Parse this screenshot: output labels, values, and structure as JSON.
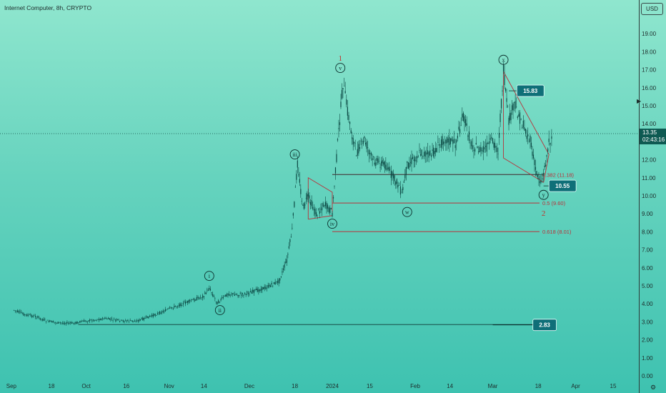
{
  "header": {
    "title": "Internet Computer, 8h, CRYPTO",
    "unit_button": "USD"
  },
  "price_tag": {
    "price": "13.35",
    "countdown": "02:43:16"
  },
  "colors": {
    "candles": "#0d4a45",
    "fib_line": "#b8323a",
    "marker_box": "#0f6f78",
    "wave_primary": "#c0312b",
    "text_dark": "#1d2b2a"
  },
  "icons": {
    "settings": "gear-icon"
  },
  "chart_data": {
    "type": "line",
    "y_axis_ticks": [
      "0.00",
      "1.00",
      "2.00",
      "3.00",
      "4.00",
      "5.00",
      "6.00",
      "7.00",
      "8.00",
      "9.00",
      "10.00",
      "11.00",
      "12.00",
      "13.00",
      "14.00",
      "15.00",
      "16.00",
      "17.00",
      "18.00",
      "19.00"
    ],
    "x_axis_ticks": [
      "Sep",
      "18",
      "Oct",
      "16",
      "Nov",
      "14",
      "Dec",
      "18",
      "2024",
      "15",
      "Feb",
      "14",
      "Mar",
      "18",
      "Apr",
      "15"
    ],
    "ylim": [
      0,
      20
    ],
    "grid": false,
    "current_price": 13.35,
    "price_path": [
      [
        "Sep 4",
        3.65
      ],
      [
        "Sep 8",
        3.4
      ],
      [
        "Sep 12",
        3.3
      ],
      [
        "Sep 16",
        3.05
      ],
      [
        "Sep 20",
        2.95
      ],
      [
        "Sep 26",
        2.92
      ],
      [
        "Oct 1",
        3.05
      ],
      [
        "Oct 8",
        3.18
      ],
      [
        "Oct 14",
        3.05
      ],
      [
        "Oct 20",
        3.05
      ],
      [
        "Oct 26",
        3.35
      ],
      [
        "Oct 31",
        3.65
      ],
      [
        "Nov 5",
        3.95
      ],
      [
        "Nov 10",
        4.2
      ],
      [
        "Nov 14",
        4.45
      ],
      [
        "Nov 16",
        4.88
      ],
      [
        "Nov 19",
        4.05
      ],
      [
        "Nov 23",
        4.55
      ],
      [
        "Nov 28",
        4.5
      ],
      [
        "Dec 4",
        4.75
      ],
      [
        "Dec 8",
        4.95
      ],
      [
        "Dec 12",
        5.25
      ],
      [
        "Dec 15",
        6.4
      ],
      [
        "Dec 17",
        8.1
      ],
      [
        "Dec 19",
        11.8
      ],
      [
        "Dec 21",
        9.3
      ],
      [
        "Dec 23",
        10.0
      ],
      [
        "Dec 26",
        8.95
      ],
      [
        "Dec 29",
        9.55
      ],
      [
        "Jan 1",
        9.05
      ],
      [
        "Jan 3",
        12.9
      ],
      [
        "Jan 5",
        16.25
      ],
      [
        "Jan 8",
        13.6
      ],
      [
        "Jan 10",
        12.4
      ],
      [
        "Jan 13",
        13.1
      ],
      [
        "Jan 16",
        12.0
      ],
      [
        "Jan 21",
        11.7
      ],
      [
        "Jan 23",
        11.2
      ],
      [
        "Jan 26",
        10.55
      ],
      [
        "Jan 27",
        10.05
      ],
      [
        "Jan 29",
        11.7
      ],
      [
        "Feb 3",
        12.4
      ],
      [
        "Feb 7",
        12.25
      ],
      [
        "Feb 12",
        13.2
      ],
      [
        "Feb 16",
        12.9
      ],
      [
        "Feb 19",
        14.45
      ],
      [
        "Feb 22",
        12.85
      ],
      [
        "Feb 26",
        12.45
      ],
      [
        "Mar 1",
        13.05
      ],
      [
        "Mar 3",
        12.5
      ],
      [
        "Mar 5",
        16.9
      ],
      [
        "Mar 7",
        14.1
      ],
      [
        "Mar 9",
        15.1
      ],
      [
        "Mar 12",
        14.0
      ],
      [
        "Mar 15",
        13.05
      ],
      [
        "Mar 17",
        11.45
      ],
      [
        "Mar 19",
        10.75
      ],
      [
        "Mar 20",
        11.2
      ],
      [
        "Mar 22",
        12.9
      ],
      [
        "Mar 23",
        13.35
      ]
    ],
    "horizontal_levels": [
      {
        "label": "0.382 (11.18)",
        "value": 11.18
      },
      {
        "label": "0.5 (9.60)",
        "value": 9.6
      },
      {
        "label": "0.618 (8.01)",
        "value": 8.01
      }
    ],
    "reference_lines": [
      {
        "value": 11.18,
        "from": "Jan 1",
        "to": "Mar 20"
      },
      {
        "value": 2.85,
        "from": "Sep 28",
        "to": "Mar 17"
      }
    ],
    "price_markers": [
      {
        "label": "15.83",
        "value": 15.83,
        "date": "Mar 10"
      },
      {
        "label": "10.55",
        "value": 10.55,
        "date": "Mar 22"
      },
      {
        "label": "2.83",
        "value": 2.83,
        "date": "Mar 16"
      }
    ],
    "wave_labels": [
      {
        "label": "i",
        "date": "Nov 16",
        "value": 5.55,
        "style": "circle"
      },
      {
        "label": "ii",
        "date": "Nov 20",
        "value": 3.65,
        "style": "circle"
      },
      {
        "label": "iii",
        "date": "Dec 18",
        "value": 12.3,
        "style": "circle"
      },
      {
        "label": "iv",
        "date": "Jan 1",
        "value": 8.45,
        "style": "circle"
      },
      {
        "label": "v",
        "date": "Jan 4",
        "value": 17.1,
        "style": "circle"
      },
      {
        "label": "w",
        "date": "Jan 29",
        "value": 9.1,
        "style": "circle"
      },
      {
        "label": "x",
        "date": "Mar 5",
        "value": 17.55,
        "style": "circle"
      },
      {
        "label": "y",
        "date": "Mar 20",
        "value": 10.05,
        "style": "circle"
      },
      {
        "label": "1",
        "date": "Jan 4",
        "value": 17.65,
        "style": "primary"
      },
      {
        "label": "2",
        "date": "Mar 20",
        "value": 9.05,
        "style": "primary"
      }
    ]
  }
}
